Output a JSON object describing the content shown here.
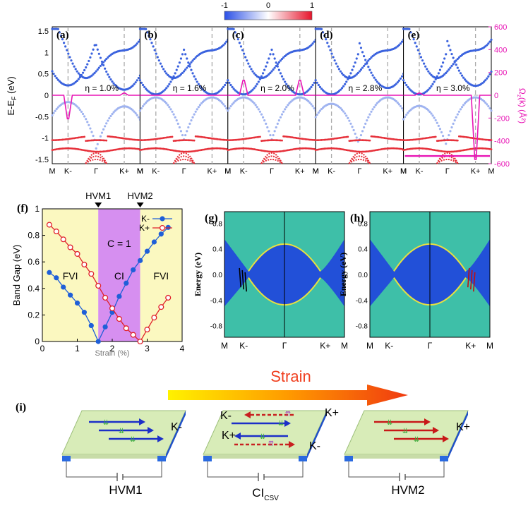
{
  "colorbar": {
    "min_label": "-1",
    "mid_label": "0",
    "max_label": "1",
    "low_color": "#2b50e6",
    "high_color": "#e6142b"
  },
  "band_panels": {
    "ylabel": "E-E",
    "ylabel_sub": "F",
    "ylabel_unit": " (eV)",
    "yticks": [
      "1.5",
      "1",
      "0.5",
      "0",
      "-0.5",
      "-1",
      "-1.5"
    ],
    "right_axis_label": "Ω",
    "right_axis_sub": "z",
    "right_axis_unit": "(k) (Å²)",
    "right_ticks": [
      "600",
      "400",
      "200",
      "0",
      "-200",
      "-400",
      "-600"
    ],
    "panels": [
      {
        "label": "(a)",
        "eta": "η = 1.0%",
        "xticks": [
          "M",
          "K-",
          "Γ",
          "K+",
          "M"
        ]
      },
      {
        "label": "(b)",
        "eta": "η = 1.6%",
        "xticks": [
          "M",
          "K-",
          "Γ",
          "K+",
          "M"
        ]
      },
      {
        "label": "(c)",
        "eta": "η = 2.0%",
        "xticks": [
          "M",
          "K-",
          "Γ",
          "K+",
          "M"
        ]
      },
      {
        "label": "(d)",
        "eta": "η = 2.8%",
        "xticks": [
          "M",
          "K-",
          "Γ",
          "K+",
          "M"
        ]
      },
      {
        "label": "(e)",
        "eta": "η = 3.0%",
        "xticks": [
          "M",
          "K-",
          "Γ",
          "K+",
          "M"
        ]
      }
    ],
    "berry_color": "#e815b5"
  },
  "chart_data": {
    "type": "line",
    "title": "",
    "xlabel": "Strain (%)",
    "ylabel": "Band Gap (eV)",
    "xlim": [
      0,
      4
    ],
    "ylim": [
      0,
      1
    ],
    "xticks": [
      "0",
      "1",
      "2",
      "3",
      "4"
    ],
    "yticks": [
      "0",
      "0.2",
      "0.4",
      "0.6",
      "0.8",
      "1"
    ],
    "series": [
      {
        "name": "K-",
        "color": "#1f5fd8",
        "marker": "filled",
        "x": [
          0.2,
          0.4,
          0.6,
          0.8,
          1.0,
          1.2,
          1.4,
          1.6,
          1.8,
          2.0,
          2.2,
          2.4,
          2.6,
          2.8,
          3.0,
          3.2,
          3.4,
          3.6
        ],
        "y": [
          0.52,
          0.48,
          0.41,
          0.35,
          0.29,
          0.22,
          0.12,
          0.0,
          0.11,
          0.22,
          0.34,
          0.44,
          0.54,
          0.61,
          0.68,
          0.75,
          0.81,
          0.86
        ]
      },
      {
        "name": "K+",
        "color": "#e0202a",
        "marker": "open",
        "x": [
          0.2,
          0.4,
          0.6,
          0.8,
          1.0,
          1.2,
          1.4,
          1.6,
          1.8,
          2.0,
          2.2,
          2.4,
          2.6,
          2.8,
          3.0,
          3.2,
          3.4,
          3.6
        ],
        "y": [
          0.88,
          0.83,
          0.77,
          0.71,
          0.66,
          0.58,
          0.51,
          0.42,
          0.33,
          0.25,
          0.17,
          0.1,
          0.05,
          0.0,
          0.09,
          0.18,
          0.26,
          0.33
        ]
      }
    ],
    "regions": [
      {
        "label": "FVI",
        "from": 0,
        "to": 1.6,
        "color": "#fbf8c0"
      },
      {
        "label": "CI",
        "from": 1.6,
        "to": 2.8,
        "color": "#d68ff0"
      },
      {
        "label": "FVI",
        "from": 2.8,
        "to": 4.0,
        "color": "#fbf8c0"
      }
    ],
    "region_note": "C = 1",
    "markers": [
      {
        "label": "HVM1",
        "x": 1.6
      },
      {
        "label": "HVM2",
        "x": 2.8
      }
    ],
    "panel_label": "(f)"
  },
  "edge_panels": [
    {
      "label": "(g)",
      "ylabel": "Energy (eV)",
      "yticks": [
        "0.8",
        "0.4",
        "0.0",
        "-0.4",
        "-0.8"
      ],
      "xticks": [
        "M",
        "K-",
        "Γ",
        "K+",
        "M"
      ],
      "arrow_color": "#000000"
    },
    {
      "label": "(h)",
      "ylabel": "Energy (eV)",
      "yticks": [
        "0.8",
        "0.4",
        "0.0",
        "-0.4",
        "-0.8"
      ],
      "xticks": [
        "M",
        "K-",
        "Γ",
        "K+",
        "M"
      ],
      "arrow_color": "#c01010"
    }
  ],
  "schematic": {
    "label": "(i)",
    "strain_label": "Strain",
    "strain_color": "#f04020",
    "left": {
      "name": "HVM1",
      "valley": "K-"
    },
    "middle": {
      "name": "CI",
      "name_sub": "CSV",
      "top_left": "K-",
      "top_right": "K+",
      "bottom_left": "K+",
      "bottom_right": "K-"
    },
    "right": {
      "name": "HVM2",
      "valley": "K+"
    }
  }
}
